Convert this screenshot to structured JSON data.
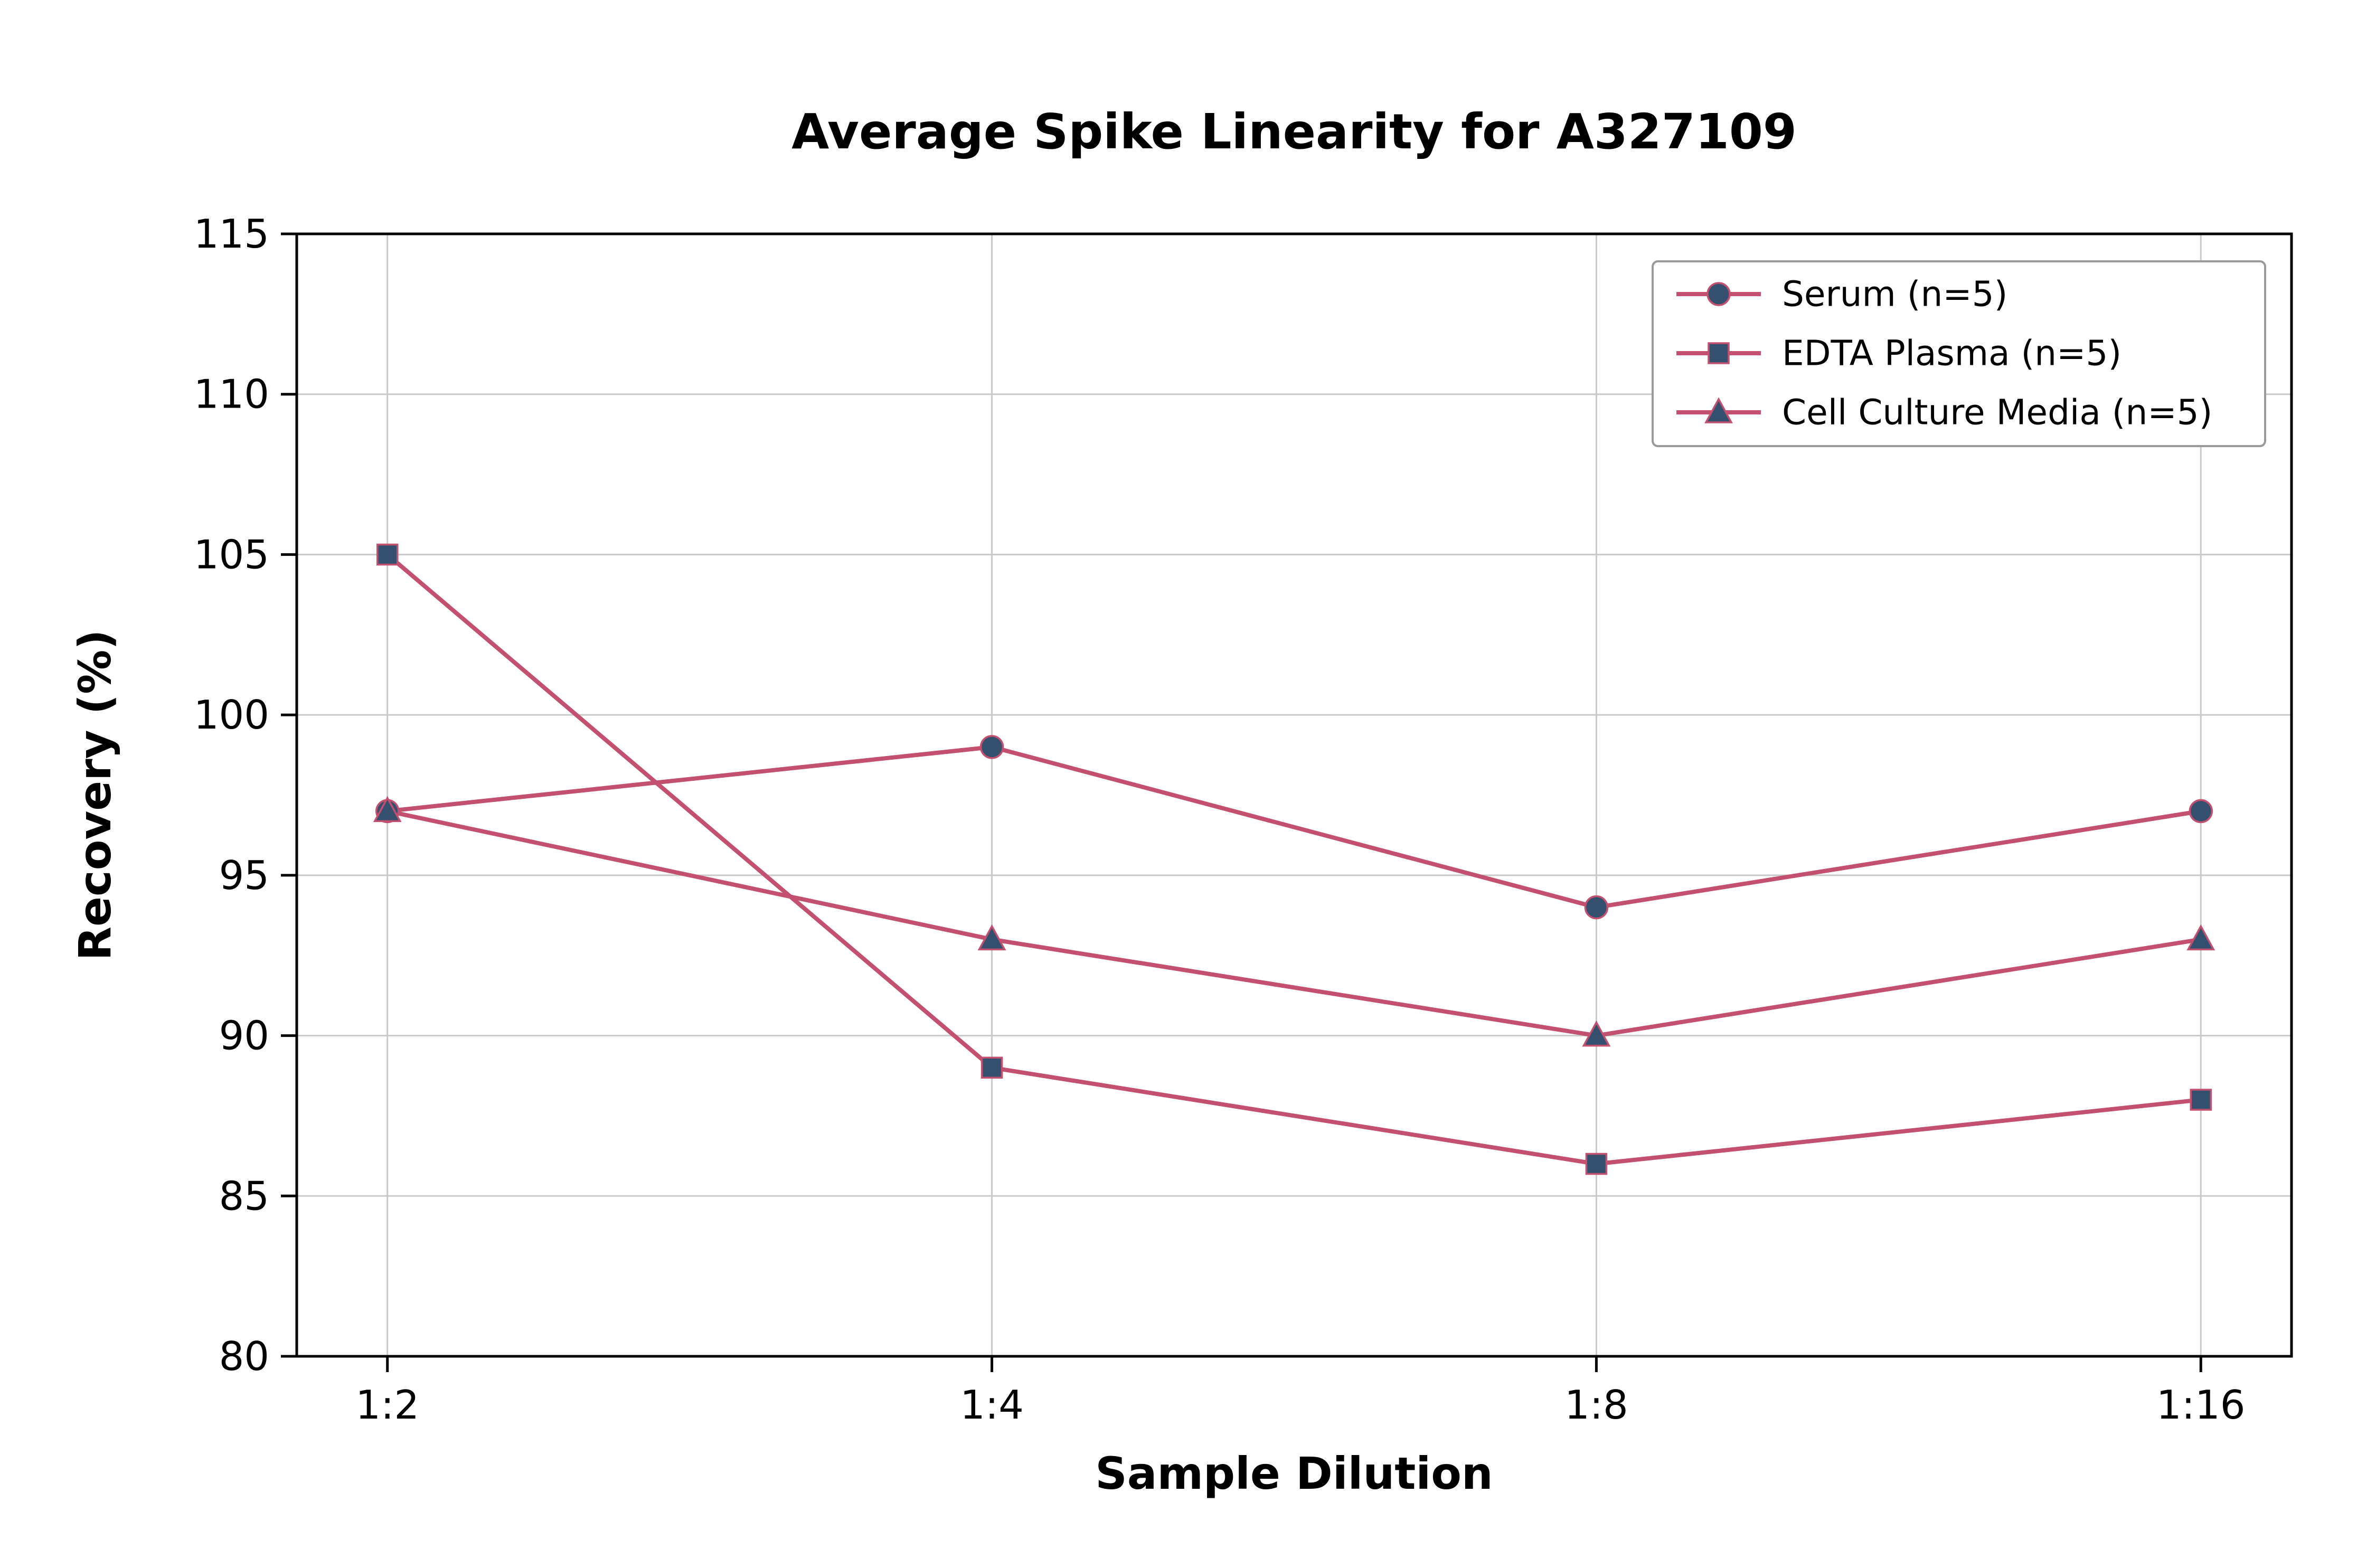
{
  "figure": {
    "title": "Average Spike Linearity for A327109",
    "xlabel": "Sample Dilution",
    "ylabel": "Recovery (%)"
  },
  "chart_data": {
    "type": "line",
    "title": "Average Spike Linearity for A327109",
    "xlabel": "Sample Dilution",
    "ylabel": "Recovery (%)",
    "categories": [
      "1:2",
      "1:4",
      "1:8",
      "1:16"
    ],
    "ylim": [
      80,
      115
    ],
    "yticks": [
      80,
      85,
      90,
      95,
      100,
      105,
      110,
      115
    ],
    "grid": true,
    "legend_position": "upper right",
    "line_color": "#c2506e",
    "marker_color": "#34506e",
    "grid_color": "#c9c9c9",
    "legend_border_color": "#9a9a9a",
    "series": [
      {
        "name": "Serum (n=5)",
        "marker": "circle",
        "values": [
          97,
          99,
          94,
          97
        ]
      },
      {
        "name": "EDTA Plasma (n=5)",
        "marker": "square",
        "values": [
          105,
          89,
          86,
          88
        ]
      },
      {
        "name": "Cell Culture Media (n=5)",
        "marker": "triangle",
        "values": [
          97,
          93,
          90,
          93
        ]
      }
    ]
  }
}
